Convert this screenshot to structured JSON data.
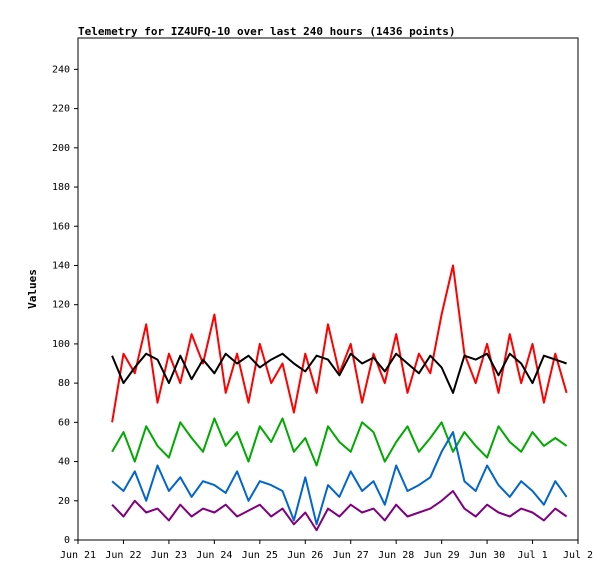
{
  "chart_data": {
    "type": "line",
    "title": "Telemetry for IZ4UFQ-10 over last 240 hours (1436 points)",
    "xlabel": "",
    "ylabel": "Values",
    "ylim": [
      0,
      256
    ],
    "yticks": [
      0,
      20,
      40,
      60,
      80,
      100,
      120,
      140,
      160,
      180,
      200,
      220,
      240
    ],
    "xticks": [
      "Jun 21",
      "Jun 22",
      "Jun 23",
      "Jun 24",
      "Jun 25",
      "Jun 26",
      "Jun 27",
      "Jun 28",
      "Jun 29",
      "Jun 30",
      "Jul 1",
      "Jul 2"
    ],
    "xlim_days": [
      0,
      11
    ],
    "grid": false,
    "series": [
      {
        "color": "#ff0000",
        "x": [
          0.75,
          1.0,
          1.25,
          1.5,
          1.75,
          2.0,
          2.25,
          2.5,
          2.75,
          3.0,
          3.25,
          3.5,
          3.75,
          4.0,
          4.25,
          4.5,
          4.75,
          5.0,
          5.25,
          5.5,
          5.75,
          6.0,
          6.25,
          6.5,
          6.75,
          7.0,
          7.25,
          7.5,
          7.75,
          8.0,
          8.25,
          8.5,
          8.75,
          9.0,
          9.25,
          9.5,
          9.75,
          10.0,
          10.25,
          10.5,
          10.75
        ],
        "values": [
          60,
          95,
          85,
          110,
          70,
          95,
          80,
          105,
          90,
          115,
          75,
          95,
          70,
          100,
          80,
          90,
          65,
          95,
          75,
          110,
          85,
          100,
          70,
          95,
          80,
          105,
          75,
          95,
          85,
          115,
          140,
          95,
          80,
          100,
          75,
          105,
          80,
          100,
          70,
          95,
          75
        ]
      },
      {
        "color": "#000000",
        "x": [
          0.75,
          1.0,
          1.25,
          1.5,
          1.75,
          2.0,
          2.25,
          2.5,
          2.75,
          3.0,
          3.25,
          3.5,
          3.75,
          4.0,
          4.25,
          4.5,
          4.75,
          5.0,
          5.25,
          5.5,
          5.75,
          6.0,
          6.25,
          6.5,
          6.75,
          7.0,
          7.25,
          7.5,
          7.75,
          8.0,
          8.25,
          8.5,
          8.75,
          9.0,
          9.25,
          9.5,
          9.75,
          10.0,
          10.25,
          10.5,
          10.75
        ],
        "values": [
          94,
          80,
          88,
          95,
          92,
          80,
          94,
          82,
          92,
          85,
          95,
          90,
          94,
          88,
          92,
          95,
          90,
          86,
          94,
          92,
          84,
          95,
          90,
          93,
          86,
          95,
          90,
          85,
          94,
          88,
          75,
          94,
          92,
          95,
          84,
          95,
          90,
          80,
          94,
          92,
          90
        ]
      },
      {
        "color": "#00aa00",
        "x": [
          0.75,
          1.0,
          1.25,
          1.5,
          1.75,
          2.0,
          2.25,
          2.5,
          2.75,
          3.0,
          3.25,
          3.5,
          3.75,
          4.0,
          4.25,
          4.5,
          4.75,
          5.0,
          5.25,
          5.5,
          5.75,
          6.0,
          6.25,
          6.5,
          6.75,
          7.0,
          7.25,
          7.5,
          7.75,
          8.0,
          8.25,
          8.5,
          8.75,
          9.0,
          9.25,
          9.5,
          9.75,
          10.0,
          10.25,
          10.5,
          10.75
        ],
        "values": [
          45,
          55,
          40,
          58,
          48,
          42,
          60,
          52,
          45,
          62,
          48,
          55,
          40,
          58,
          50,
          62,
          45,
          52,
          38,
          58,
          50,
          45,
          60,
          55,
          40,
          50,
          58,
          45,
          52,
          60,
          45,
          55,
          48,
          42,
          58,
          50,
          45,
          55,
          48,
          52,
          48
        ]
      },
      {
        "color": "#0066cc",
        "x": [
          0.75,
          1.0,
          1.25,
          1.5,
          1.75,
          2.0,
          2.25,
          2.5,
          2.75,
          3.0,
          3.25,
          3.5,
          3.75,
          4.0,
          4.25,
          4.5,
          4.75,
          5.0,
          5.25,
          5.5,
          5.75,
          6.0,
          6.25,
          6.5,
          6.75,
          7.0,
          7.25,
          7.5,
          7.75,
          8.0,
          8.25,
          8.5,
          8.75,
          9.0,
          9.25,
          9.5,
          9.75,
          10.0,
          10.25,
          10.5,
          10.75
        ],
        "values": [
          30,
          25,
          35,
          20,
          38,
          25,
          32,
          22,
          30,
          28,
          24,
          35,
          20,
          30,
          28,
          25,
          10,
          32,
          8,
          28,
          22,
          35,
          25,
          30,
          18,
          38,
          25,
          28,
          32,
          45,
          55,
          30,
          25,
          38,
          28,
          22,
          30,
          25,
          18,
          30,
          22
        ]
      },
      {
        "color": "#800080",
        "x": [
          0.75,
          1.0,
          1.25,
          1.5,
          1.75,
          2.0,
          2.25,
          2.5,
          2.75,
          3.0,
          3.25,
          3.5,
          3.75,
          4.0,
          4.25,
          4.5,
          4.75,
          5.0,
          5.25,
          5.5,
          5.75,
          6.0,
          6.25,
          6.5,
          6.75,
          7.0,
          7.25,
          7.5,
          7.75,
          8.0,
          8.25,
          8.5,
          8.75,
          9.0,
          9.25,
          9.5,
          9.75,
          10.0,
          10.25,
          10.5,
          10.75
        ],
        "values": [
          18,
          12,
          20,
          14,
          16,
          10,
          18,
          12,
          16,
          14,
          18,
          12,
          15,
          18,
          12,
          16,
          8,
          14,
          5,
          16,
          12,
          18,
          14,
          16,
          10,
          18,
          12,
          14,
          16,
          20,
          25,
          16,
          12,
          18,
          14,
          12,
          16,
          14,
          10,
          16,
          12
        ]
      }
    ]
  }
}
